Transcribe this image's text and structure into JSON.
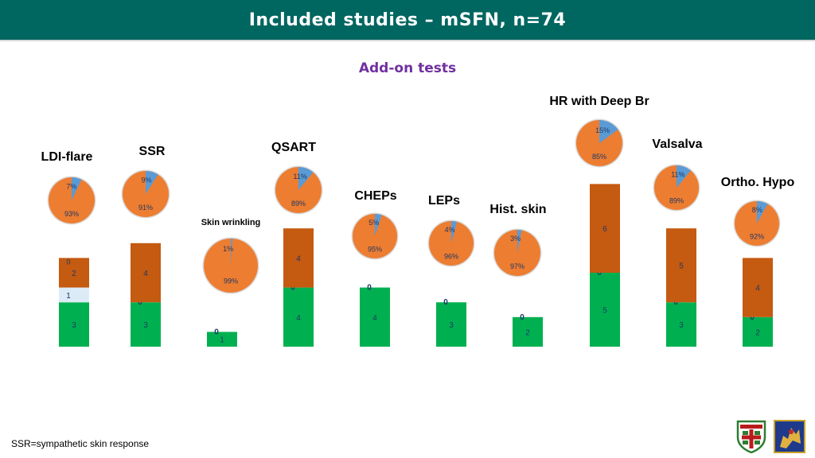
{
  "header": {
    "title": "Included studies – mSFN, n=74"
  },
  "subtitle": "Add-on tests",
  "footnote": "SSR=sympathetic skin response",
  "colors": {
    "header_bg": "#006660",
    "subtitle": "#7030a0",
    "segment_bottom": "#00b050",
    "segment_light": "#ddebf7",
    "segment_top": "#c55a11",
    "pie_major": "#ed7d31",
    "pie_minor": "#5b9bd5",
    "pie_border": "#d9d9d9"
  },
  "chart_data": {
    "type": "bar",
    "stacked": true,
    "categories": [
      "LDI-flare",
      "SSR",
      "Skin wrinkling",
      "QSART",
      "CHEPs",
      "LEPs",
      "Hist. skin",
      "HR with Deep Br",
      "Valsalva",
      "Ortho. Hypo"
    ],
    "segments": [
      {
        "values": [
          3,
          3,
          1,
          4,
          4,
          3,
          2,
          5,
          3,
          2
        ],
        "labels": [
          "3",
          "3",
          "1",
          "4",
          "4",
          "3",
          "2",
          "5",
          "3",
          "2"
        ]
      },
      {
        "values": [
          1,
          0,
          0,
          0,
          0,
          0,
          0,
          0,
          0,
          0
        ],
        "labels": [
          "1",
          "0",
          "0",
          "0",
          "0",
          "0",
          "0",
          "0",
          "0",
          "0"
        ]
      },
      {
        "values": [
          2,
          4,
          0,
          4,
          0,
          0,
          0,
          6,
          5,
          4
        ],
        "labels": [
          "2",
          "4",
          "",
          "4",
          "",
          "",
          "",
          "6",
          "5",
          "4"
        ]
      }
    ],
    "extra_labels": [
      "0",
      "",
      "",
      "",
      "",
      "",
      "",
      "",
      "",
      ""
    ],
    "pies": [
      {
        "major": 93,
        "minor": 7,
        "major_label": "93%",
        "minor_label": "7%"
      },
      {
        "major": 91,
        "minor": 9,
        "major_label": "91%",
        "minor_label": "9%"
      },
      {
        "major": 99,
        "minor": 1,
        "major_label": "99%",
        "minor_label": "1%"
      },
      {
        "major": 89,
        "minor": 11,
        "major_label": "89%",
        "minor_label": "11%"
      },
      {
        "major": 95,
        "minor": 5,
        "major_label": "95%",
        "minor_label": "5%"
      },
      {
        "major": 96,
        "minor": 4,
        "major_label": "96%",
        "minor_label": "4%"
      },
      {
        "major": 97,
        "minor": 3,
        "major_label": "97%",
        "minor_label": "3%"
      },
      {
        "major": 85,
        "minor": 15,
        "major_label": "85%",
        "minor_label": "15%"
      },
      {
        "major": 89,
        "minor": 11,
        "major_label": "89%",
        "minor_label": "11%"
      },
      {
        "major": 92,
        "minor": 8,
        "major_label": "92%",
        "minor_label": "8%"
      }
    ]
  }
}
